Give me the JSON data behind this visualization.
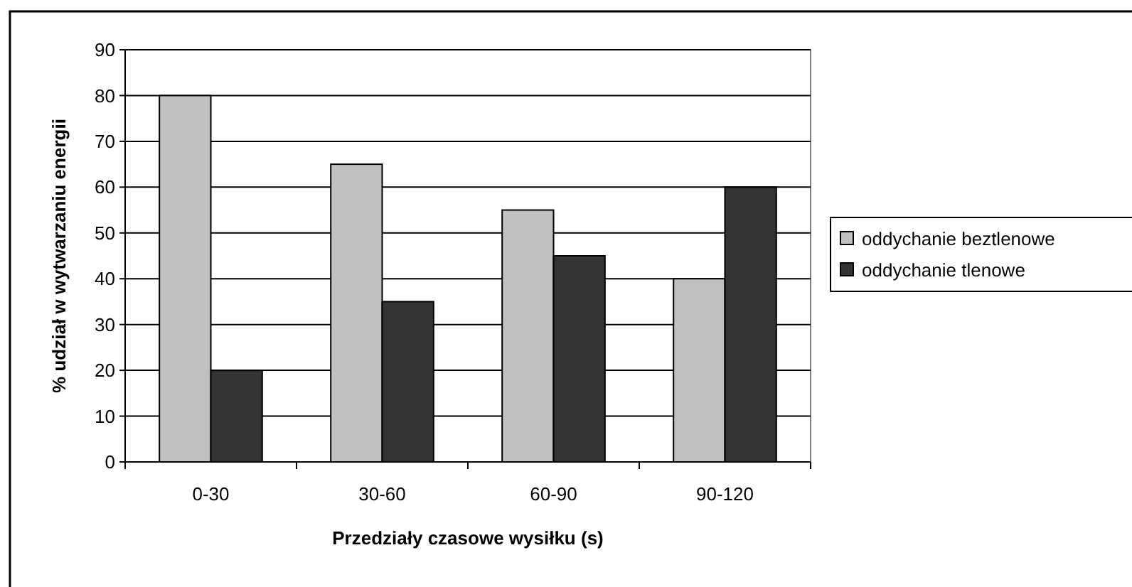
{
  "chart_data": {
    "type": "bar",
    "xlabel": "Przedziały czasowe wysiłku (s)",
    "ylabel": "% udział w wytwarzaniu energii",
    "categories": [
      "0-30",
      "30-60",
      "60-90",
      "90-120"
    ],
    "series": [
      {
        "name": "oddychanie beztlenowe",
        "color": "#c0c0c0",
        "values": [
          80,
          65,
          55,
          40
        ]
      },
      {
        "name": "oddychanie tlenowe",
        "color": "#333333",
        "values": [
          20,
          35,
          45,
          60
        ]
      }
    ],
    "ylim": [
      0,
      90
    ],
    "yticks": [
      0,
      10,
      20,
      30,
      40,
      50,
      60,
      70,
      80,
      90
    ],
    "grid": "y",
    "legend": "right"
  }
}
